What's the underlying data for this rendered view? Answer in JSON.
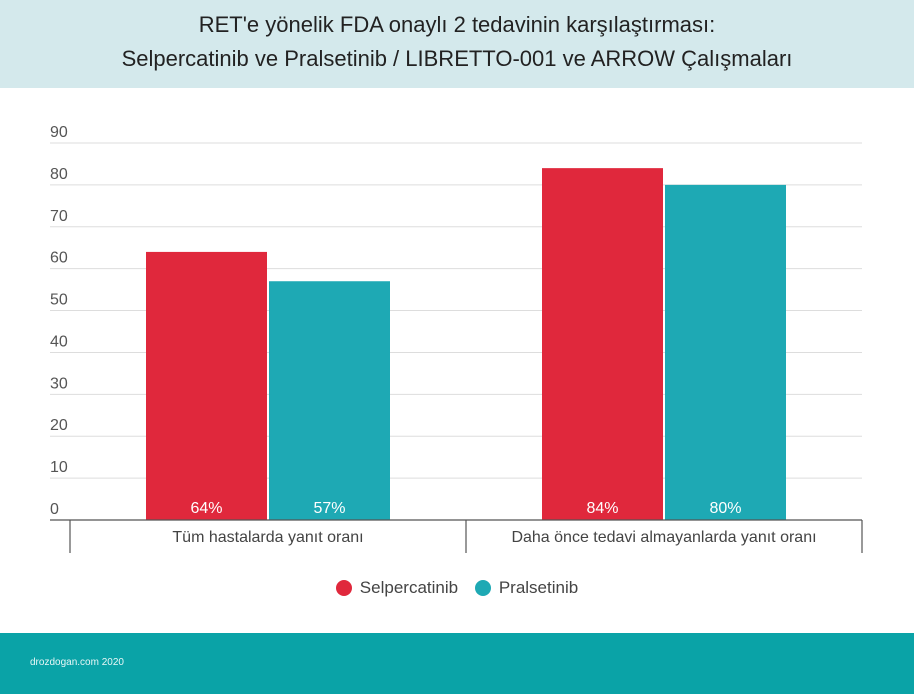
{
  "header": {
    "title_line1": "RET'e yönelik FDA onaylı 2 tedavinin karşılaştırması:",
    "title_line2": "Selpercatinib ve Pralsetinib / LIBRETTO-001 ve ARROW Çalışmaları"
  },
  "chart_data": {
    "type": "bar",
    "categories": [
      "Tüm hastalarda yanıt oranı",
      "Daha önce tedavi almayanlarda yanıt oranı"
    ],
    "series": [
      {
        "name": "Selpercatinib",
        "values": [
          64,
          84
        ],
        "labels": [
          "64%",
          "84%"
        ],
        "color": "#e0283c"
      },
      {
        "name": "Pralsetinib",
        "values": [
          57,
          80
        ],
        "labels": [
          "57%",
          "80%"
        ],
        "color": "#1ea9b4"
      }
    ],
    "ylim": [
      0,
      90
    ],
    "yticks": [
      "0",
      "10",
      "20",
      "30",
      "40",
      "50",
      "60",
      "70",
      "80",
      "90"
    ],
    "tick_values": [
      0,
      10,
      20,
      30,
      40,
      50,
      60,
      70,
      80,
      90
    ],
    "grid": true,
    "legend": "bottom-center"
  },
  "footer": {
    "credit": "drozdogan.com 2020"
  }
}
